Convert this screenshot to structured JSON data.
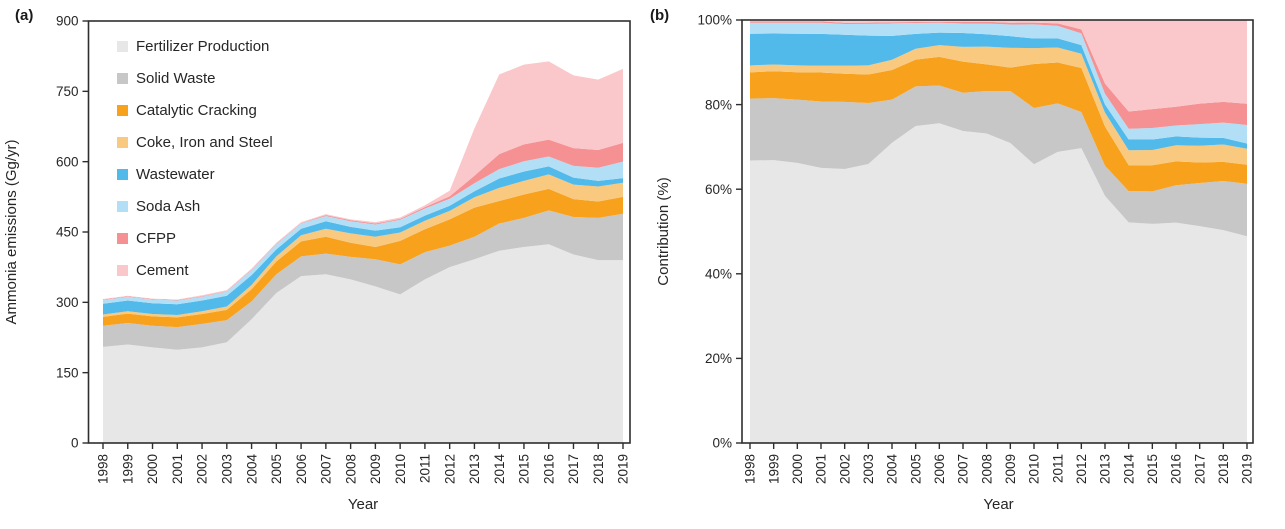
{
  "figure": {
    "panel_a_tag": "(a)",
    "panel_b_tag": "(b)",
    "background_color": "#ffffff",
    "axis_color": "#2e2e2e",
    "text_color": "#262626"
  },
  "chart_data": [
    {
      "id": "panel_a",
      "type": "area",
      "stacked": true,
      "normalize_to_percent": false,
      "title": "",
      "xlabel": "Year",
      "ylabel": "Ammonia emissions (Gg/yr)",
      "ylim": [
        0,
        900
      ],
      "yticks": {
        "values": [
          0,
          150,
          300,
          450,
          600,
          750,
          900
        ],
        "labels": [
          "0",
          "150",
          "300",
          "450",
          "600",
          "750",
          "900"
        ]
      },
      "grid": false,
      "legend_position": "top-left-inside",
      "categories": [
        "1998",
        "1999",
        "2000",
        "2001",
        "2002",
        "2003",
        "2004",
        "2005",
        "2006",
        "2007",
        "2008",
        "2009",
        "2010",
        "2011",
        "2012",
        "2013",
        "2014",
        "2015",
        "2016",
        "2017",
        "2018",
        "2019"
      ],
      "series": [
        {
          "name": "Fertilizer Production",
          "color": "#E7E7E7",
          "values": [
            205,
            210,
            204,
            199,
            204,
            215,
            264,
            320,
            356,
            360,
            349,
            334,
            317,
            349,
            375,
            392,
            410,
            418,
            424,
            402,
            390,
            390
          ]
        },
        {
          "name": "Solid Waste",
          "color": "#C7C7C7",
          "values": [
            45,
            46,
            46,
            48,
            50,
            47,
            38,
            40,
            42,
            44,
            48,
            58,
            64,
            58,
            46,
            48,
            58,
            62,
            72,
            80,
            90,
            99
          ]
        },
        {
          "name": "Catalytic Cracking",
          "color": "#F7A11C",
          "values": [
            19,
            20,
            20,
            21,
            21,
            22,
            26,
            27,
            32,
            36,
            30,
            26,
            50,
            49,
            56,
            62,
            48,
            50,
            46,
            38,
            35,
            36
          ]
        },
        {
          "name": "Coke, Iron and Steel",
          "color": "#F9C980",
          "values": [
            5,
            5,
            5,
            5,
            6,
            7,
            9,
            11,
            13,
            17,
            20,
            22,
            18,
            18,
            18,
            22,
            28,
            29,
            31,
            31,
            32,
            30
          ]
        },
        {
          "name": "Wastewater",
          "color": "#52BAEA",
          "values": [
            23,
            23,
            23,
            23,
            23,
            23,
            21,
            15,
            14,
            16,
            14,
            13,
            11,
            11,
            11,
            13,
            20,
            20,
            17,
            15,
            12,
            10
          ]
        },
        {
          "name": "Soda Ash",
          "color": "#B3DFF6",
          "values": [
            8,
            8,
            8,
            8,
            8,
            9,
            11,
            11,
            11,
            11,
            12,
            13,
            16,
            15,
            15,
            17,
            20,
            22,
            21,
            25,
            28,
            35
          ]
        },
        {
          "name": "CFPP",
          "color": "#F59193",
          "values": [
            1,
            1,
            1,
            1,
            1,
            1,
            1,
            1,
            1,
            2,
            2,
            2,
            2,
            3,
            5,
            16,
            32,
            36,
            36,
            38,
            38,
            40
          ]
        },
        {
          "name": "Cement",
          "color": "#FAC7CB",
          "values": [
            1,
            1,
            1,
            1,
            2,
            2,
            2,
            2,
            2,
            2,
            2,
            3,
            3,
            4,
            12,
            101,
            170,
            170,
            167,
            155,
            150,
            158
          ]
        }
      ]
    },
    {
      "id": "panel_b",
      "type": "area",
      "stacked": true,
      "normalize_to_percent": true,
      "title": "",
      "xlabel": "Year",
      "ylabel": "Contribution (%)",
      "ylim": [
        0,
        100
      ],
      "yticks": {
        "values": [
          0,
          20,
          40,
          60,
          80,
          100
        ],
        "labels": [
          "0%",
          "20%",
          "40%",
          "60%",
          "80%",
          "100%"
        ]
      },
      "grid": false,
      "legend_position": "none",
      "categories": [
        "1998",
        "1999",
        "2000",
        "2001",
        "2002",
        "2003",
        "2004",
        "2005",
        "2006",
        "2007",
        "2008",
        "2009",
        "2010",
        "2011",
        "2012",
        "2013",
        "2014",
        "2015",
        "2016",
        "2017",
        "2018",
        "2019"
      ],
      "series": [
        {
          "name": "Fertilizer Production",
          "color": "#E7E7E7",
          "values": [
            205,
            210,
            204,
            199,
            204,
            215,
            264,
            320,
            356,
            360,
            349,
            334,
            317,
            349,
            375,
            392,
            410,
            418,
            424,
            402,
            390,
            390
          ]
        },
        {
          "name": "Solid Waste",
          "color": "#C7C7C7",
          "values": [
            45,
            46,
            46,
            48,
            50,
            47,
            38,
            40,
            42,
            44,
            48,
            58,
            64,
            58,
            46,
            48,
            58,
            62,
            72,
            80,
            90,
            99
          ]
        },
        {
          "name": "Catalytic Cracking",
          "color": "#F7A11C",
          "values": [
            19,
            20,
            20,
            21,
            21,
            22,
            26,
            27,
            32,
            36,
            30,
            26,
            50,
            49,
            56,
            62,
            48,
            50,
            46,
            38,
            35,
            36
          ]
        },
        {
          "name": "Coke, Iron and Steel",
          "color": "#F9C980",
          "values": [
            5,
            5,
            5,
            5,
            6,
            7,
            9,
            11,
            13,
            17,
            20,
            22,
            18,
            18,
            18,
            22,
            28,
            29,
            31,
            31,
            32,
            30
          ]
        },
        {
          "name": "Wastewater",
          "color": "#52BAEA",
          "values": [
            23,
            23,
            23,
            23,
            23,
            23,
            21,
            15,
            14,
            16,
            14,
            13,
            11,
            11,
            11,
            13,
            20,
            20,
            17,
            15,
            12,
            10
          ]
        },
        {
          "name": "Soda Ash",
          "color": "#B3DFF6",
          "values": [
            8,
            8,
            8,
            8,
            8,
            9,
            11,
            11,
            11,
            11,
            12,
            13,
            16,
            15,
            15,
            17,
            20,
            22,
            21,
            25,
            28,
            35
          ]
        },
        {
          "name": "CFPP",
          "color": "#F59193",
          "values": [
            1,
            1,
            1,
            1,
            1,
            1,
            1,
            1,
            1,
            2,
            2,
            2,
            2,
            3,
            5,
            16,
            32,
            36,
            36,
            38,
            38,
            40
          ]
        },
        {
          "name": "Cement",
          "color": "#FAC7CB",
          "values": [
            1,
            1,
            1,
            1,
            2,
            2,
            2,
            2,
            2,
            2,
            2,
            3,
            3,
            4,
            12,
            101,
            170,
            170,
            167,
            155,
            150,
            158
          ]
        }
      ]
    }
  ]
}
